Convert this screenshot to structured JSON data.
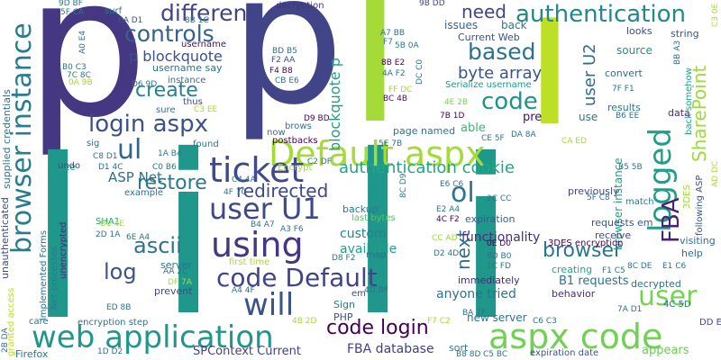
{
  "words": [
    {
      "text": "p",
      "color": "#453781"
    },
    {
      "text": "p",
      "color": "#414487"
    },
    {
      "text": "l",
      "color": "#1f988b"
    },
    {
      "text": "i",
      "color": "#1f988b"
    },
    {
      "text": "l",
      "color": "#1f988b"
    },
    {
      "text": "i",
      "color": "#1f988b"
    },
    {
      "text": "l",
      "color": "#a5db36"
    },
    {
      "text": "i",
      "color": "#bddf26"
    },
    {
      "text": "Default aspx",
      "color": "#a5db36"
    },
    {
      "text": "aspx code",
      "color": "#73d056"
    },
    {
      "text": "web application",
      "color": "#1f988b"
    },
    {
      "text": "using",
      "color": "#453781"
    },
    {
      "text": "ticket",
      "color": "#3e4a89"
    },
    {
      "text": "user U1",
      "color": "#3e4989"
    },
    {
      "text": "will",
      "color": "#3b528b"
    },
    {
      "text": "code Default",
      "color": "#404588"
    },
    {
      "text": "logged",
      "color": "#1f9e89"
    },
    {
      "text": "browser instance",
      "color": "#287c8e"
    },
    {
      "text": "login aspx",
      "color": "#3b518b"
    },
    {
      "text": "authentication",
      "color": "#24878e"
    },
    {
      "text": "code",
      "color": "#21918c"
    },
    {
      "text": "different",
      "color": "#404387"
    },
    {
      "text": "controls",
      "color": "#33638d"
    },
    {
      "text": "based",
      "color": "#2d718e"
    },
    {
      "text": "need",
      "color": "#3f4788"
    },
    {
      "text": "FBA",
      "color": "#482475"
    },
    {
      "text": "user",
      "color": "#7ad151"
    },
    {
      "text": "code login",
      "color": "#440154"
    },
    {
      "text": "redirected",
      "color": "#3e4989"
    },
    {
      "text": "restore",
      "color": "#2a788e"
    },
    {
      "text": "ascii",
      "color": "#2c738e"
    },
    {
      "text": "log",
      "color": "#3a538b"
    },
    {
      "text": "ol",
      "color": "#2a768e"
    },
    {
      "text": "ul",
      "color": "#32648e"
    },
    {
      "text": "create",
      "color": "#277f8e"
    },
    {
      "text": "browser",
      "color": "#2a768e"
    },
    {
      "text": "next",
      "color": "#2e6e8e"
    },
    {
      "text": "user U2",
      "color": "#2f6c8e"
    },
    {
      "text": "SharePoint",
      "color": "#9fda3a"
    },
    {
      "text": "authentication cookie",
      "color": "#21a685"
    },
    {
      "text": "byte array",
      "color": "#39558c"
    },
    {
      "text": "blockquote p",
      "color": "#1f9f88"
    },
    {
      "text": "p blockquote",
      "color": "#3b528b"
    },
    {
      "text": "ASP Net",
      "color": "#2d708e"
    },
    {
      "text": "functionality",
      "color": "#472f7d"
    },
    {
      "text": "anyone tried",
      "color": "#2c738e"
    },
    {
      "text": "custom",
      "color": "#26828e"
    },
    {
      "text": "available",
      "color": "#1fa088"
    },
    {
      "text": "browser instance",
      "color": "#1fa187"
    },
    {
      "text": "supplied credentials",
      "color": "#2b758e"
    },
    {
      "text": "unauthenticated",
      "color": "#3e4c8a"
    },
    {
      "text": "FBA database",
      "color": "#424086"
    },
    {
      "text": "SPContext Current",
      "color": "#414287"
    },
    {
      "text": "sort",
      "color": "#2a788e"
    },
    {
      "text": "Firefox",
      "color": "#2a768e"
    },
    {
      "text": "new server",
      "color": "#2a768e"
    },
    {
      "text": "expiration date",
      "color": "#3b528b"
    },
    {
      "text": "appears",
      "color": "#6ccd5a"
    },
    {
      "text": "PHP",
      "color": "#3b528b"
    },
    {
      "text": "em",
      "color": "#3e4989"
    },
    {
      "text": "immediately",
      "color": "#482878"
    },
    {
      "text": "B1 requests",
      "color": "#2c738e"
    },
    {
      "text": "decrypted",
      "color": "#2c728e"
    },
    {
      "text": "behavior",
      "color": "#472d7b"
    },
    {
      "text": "creating",
      "color": "#22a884"
    },
    {
      "text": "previously",
      "color": "#404588"
    },
    {
      "text": "requests em",
      "color": "#39568c"
    },
    {
      "text": "receive",
      "color": "#3e4989"
    },
    {
      "text": "3DES encryption",
      "color": "#440154"
    },
    {
      "text": "expiration",
      "color": "#355f8d"
    },
    {
      "text": "match",
      "color": "#2a788e"
    },
    {
      "text": "help",
      "color": "#2f6c8e"
    },
    {
      "text": "visiting",
      "color": "#2e6e8e"
    },
    {
      "text": "following ASP",
      "color": "#3b528b"
    },
    {
      "text": "3DES",
      "color": "#a0da39"
    },
    {
      "text": "Encrypt",
      "color": "#9dd93b"
    },
    {
      "text": "postbacks",
      "color": "#440154"
    },
    {
      "text": "found",
      "color": "#2a788e"
    },
    {
      "text": "site",
      "color": "#22a884"
    },
    {
      "text": "undo",
      "color": "#404588"
    },
    {
      "text": "sig",
      "color": "#2f6c8e"
    },
    {
      "text": "SHA1",
      "color": "#1f9f88"
    },
    {
      "text": "backup",
      "color": "#29798e"
    },
    {
      "text": "page named",
      "color": "#2b758e"
    },
    {
      "text": "able",
      "color": "#35b779"
    },
    {
      "text": "pre",
      "color": "#471063"
    },
    {
      "text": "use",
      "color": "#2a768e"
    },
    {
      "text": "issues",
      "color": "#32648e"
    },
    {
      "text": "back",
      "color": "#2a788e"
    },
    {
      "text": "Current Web",
      "color": "#3b528b"
    },
    {
      "text": "source",
      "color": "#21918c"
    },
    {
      "text": "looks",
      "color": "#3e4989"
    },
    {
      "text": "string",
      "color": "#39568c"
    },
    {
      "text": "convert",
      "color": "#2f6c8e"
    },
    {
      "text": "results",
      "color": "#2a788e"
    },
    {
      "text": "data",
      "color": "#482878"
    },
    {
      "text": "back somehow",
      "color": "#1f9e89"
    },
    {
      "text": "username",
      "color": "#471063"
    },
    {
      "text": "username say",
      "color": "#2c728e"
    },
    {
      "text": "instance",
      "color": "#2c728e"
    },
    {
      "text": "thus",
      "color": "#3e4989"
    },
    {
      "text": "sure",
      "color": "#2a788e"
    },
    {
      "text": "decryption",
      "color": "#46337e"
    },
    {
      "text": "surf",
      "color": "#2a788e"
    },
    {
      "text": "Serialize username",
      "color": "#1f988b"
    },
    {
      "text": "brows",
      "color": "#2a788e"
    },
    {
      "text": "now",
      "color": "#2c728e"
    },
    {
      "text": "granted access",
      "color": "#b5de2b"
    },
    {
      "text": "implemented Forms",
      "color": "#2e6e8e"
    },
    {
      "text": "Net processes",
      "color": "#2a788e"
    },
    {
      "text": "unencrypted",
      "color": "#482878"
    },
    {
      "text": "example",
      "color": "#2c728e"
    },
    {
      "text": "server",
      "color": "#2c728e"
    },
    {
      "text": "prevent",
      "color": "#3e4989"
    },
    {
      "text": "first time",
      "color": "#a5db36"
    },
    {
      "text": "last bytes",
      "color": "#52c569"
    },
    {
      "text": "map",
      "color": "#2f6c8e"
    },
    {
      "text": "Sign",
      "color": "#2a788e"
    },
    {
      "text": "care",
      "color": "#2c728e"
    },
    {
      "text": "encryption step",
      "color": "#2c728e"
    },
    {
      "text": "4C 5D",
      "color": "#2c728e"
    },
    {
      "text": "DD E7",
      "color": "#3e4989"
    },
    {
      "text": "5F CA",
      "color": "#2a788e"
    },
    {
      "text": "6A D1",
      "color": "#3b528b"
    },
    {
      "text": "8B 1C",
      "color": "#2c728e"
    },
    {
      "text": "9B DD",
      "color": "#3e4989"
    },
    {
      "text": "9D BF",
      "color": "#2c728e"
    },
    {
      "text": "A7 BB",
      "color": "#2a788e"
    },
    {
      "text": "8B E2",
      "color": "#440154"
    },
    {
      "text": "4A F2",
      "color": "#2c728e"
    },
    {
      "text": "DC C0",
      "color": "#2c728e"
    },
    {
      "text": "5B 0A",
      "color": "#2a788e"
    },
    {
      "text": "F7",
      "color": "#2c728e"
    },
    {
      "text": "FF DC",
      "color": "#9dd93b"
    },
    {
      "text": "BC 4B",
      "color": "#471063"
    },
    {
      "text": "BD B5",
      "color": "#2c728e"
    },
    {
      "text": "F2 AA",
      "color": "#3e4989"
    },
    {
      "text": "F4 B8",
      "color": "#440154"
    },
    {
      "text": "CB E6",
      "color": "#2c728e"
    },
    {
      "text": "B0 C3",
      "color": "#2c728e"
    },
    {
      "text": "7C 8C",
      "color": "#2a788e"
    },
    {
      "text": "0A 9B",
      "color": "#a0da39"
    },
    {
      "text": "D6 9D",
      "color": "#2c728e"
    },
    {
      "text": "4E 2B",
      "color": "#7ad151"
    },
    {
      "text": "7B 1D",
      "color": "#440154"
    },
    {
      "text": "CE 5F",
      "color": "#2a788e"
    },
    {
      "text": "DA 8A",
      "color": "#2c728e"
    },
    {
      "text": "BB A3",
      "color": "#2c728e"
    },
    {
      "text": "C3 0E",
      "color": "#a5db36"
    },
    {
      "text": "7F F1",
      "color": "#2c728e"
    },
    {
      "text": "B6 EE",
      "color": "#2c728e"
    },
    {
      "text": "CA ED",
      "color": "#a5db36"
    },
    {
      "text": "B5 5B",
      "color": "#2a788e"
    },
    {
      "text": "5F C8",
      "color": "#2c728e"
    },
    {
      "text": "AD DC",
      "color": "#a5db36"
    },
    {
      "text": "2C CC",
      "color": "#2c728e"
    },
    {
      "text": "E2 A4",
      "color": "#2a788e"
    },
    {
      "text": "4C F2",
      "color": "#440154"
    },
    {
      "text": "E6 C6",
      "color": "#2c728e"
    },
    {
      "text": "CC AD",
      "color": "#9dd93b"
    },
    {
      "text": "D2 4D",
      "color": "#2c728e"
    },
    {
      "text": "0E D0",
      "color": "#440154"
    },
    {
      "text": "8D B0",
      "color": "#2c728e"
    },
    {
      "text": "1C FD",
      "color": "#2a788e"
    },
    {
      "text": "8C D9",
      "color": "#2a788e"
    },
    {
      "text": "C2 DF",
      "color": "#2c728e"
    },
    {
      "text": "D9 BD",
      "color": "#440154"
    },
    {
      "text": "C0 B6",
      "color": "#2c728e"
    },
    {
      "text": "D1 4C",
      "color": "#2c728e"
    },
    {
      "text": "C8 D1",
      "color": "#2c728e"
    },
    {
      "text": "1A B4",
      "color": "#2a788e"
    },
    {
      "text": "C3 EE",
      "color": "#a5db36"
    },
    {
      "text": "4F 7C",
      "color": "#2c728e"
    },
    {
      "text": "C4 4A",
      "color": "#2c728e"
    },
    {
      "text": "B4 A7",
      "color": "#2c728e"
    },
    {
      "text": "A3 F6",
      "color": "#2c728e"
    },
    {
      "text": "D8 F2",
      "color": "#2c728e"
    },
    {
      "text": "D0 4E",
      "color": "#a5db36"
    },
    {
      "text": "2D 1A",
      "color": "#2c728e"
    },
    {
      "text": "6E A4",
      "color": "#2c728e"
    },
    {
      "text": "AA 2C",
      "color": "#2c728e"
    },
    {
      "text": "DF 7A",
      "color": "#a5db36"
    },
    {
      "text": "A4 4F",
      "color": "#2c728e"
    },
    {
      "text": "4D BF",
      "color": "#2c728e"
    },
    {
      "text": "ED 8B",
      "color": "#2c728e"
    },
    {
      "text": "4B 2D",
      "color": "#a5db36"
    },
    {
      "text": "F7 C2",
      "color": "#a5db36"
    },
    {
      "text": "BA 7F",
      "color": "#2c728e"
    },
    {
      "text": "C6 C3",
      "color": "#2c728e"
    },
    {
      "text": "7A D1",
      "color": "#2c728e"
    },
    {
      "text": "5E 7B",
      "color": "#2c728e"
    },
    {
      "text": "2B DA",
      "color": "#2c728e"
    },
    {
      "text": "1D D2",
      "color": "#2c728e"
    },
    {
      "text": "B8 8D",
      "color": "#2c728e"
    },
    {
      "text": "C5 BC",
      "color": "#2c728e"
    },
    {
      "text": "F1 C5",
      "color": "#2c728e"
    },
    {
      "text": "8C DE",
      "color": "#2c728e"
    },
    {
      "text": "E1 C6",
      "color": "#2c728e"
    },
    {
      "text": "A0 E4",
      "color": "#2c728e"
    }
  ]
}
